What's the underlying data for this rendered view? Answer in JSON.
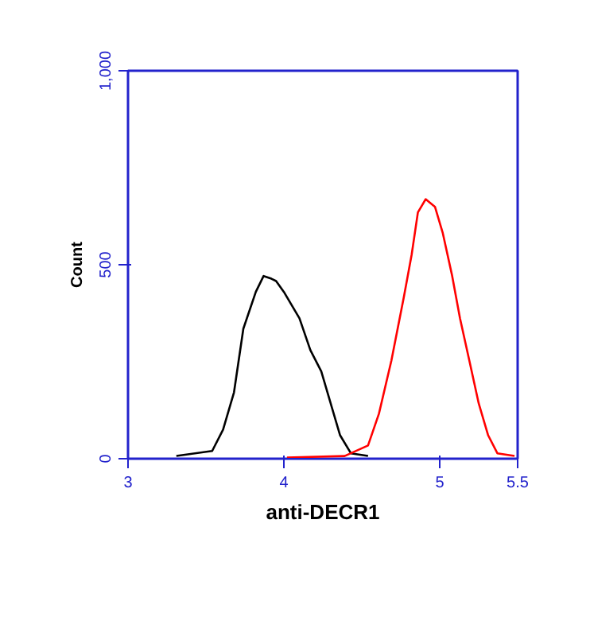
{
  "chart_data": {
    "type": "line",
    "xlabel": "anti-DECR1",
    "ylabel": "Count",
    "xlim": [
      3,
      5.5
    ],
    "xticks": [
      3,
      4,
      5,
      5.5
    ],
    "ylim": [
      0,
      1000
    ],
    "yticks": [
      0,
      500,
      {
        "value": 1000,
        "label": "1,000"
      }
    ],
    "grid": false,
    "series": [
      {
        "color": "#000000",
        "x": [
          3.31,
          3.54,
          3.61,
          3.68,
          3.74,
          3.82,
          3.87,
          3.92,
          3.95,
          4.0,
          4.1,
          4.17,
          4.24,
          4.3,
          4.36,
          4.43,
          4.54
        ],
        "values": [
          7,
          20,
          75,
          171,
          335,
          430,
          471,
          464,
          458,
          430,
          362,
          280,
          225,
          143,
          61,
          14,
          7
        ]
      },
      {
        "color": "#ff0000",
        "x": [
          4.02,
          4.39,
          4.54,
          4.61,
          4.69,
          4.77,
          4.82,
          4.86,
          4.91,
          4.97,
          5.02,
          5.08,
          5.13,
          5.19,
          5.25,
          5.31,
          5.37,
          5.48
        ],
        "values": [
          3,
          7,
          34,
          116,
          253,
          417,
          526,
          635,
          669,
          649,
          581,
          471,
          362,
          253,
          143,
          61,
          14,
          7
        ]
      }
    ]
  }
}
